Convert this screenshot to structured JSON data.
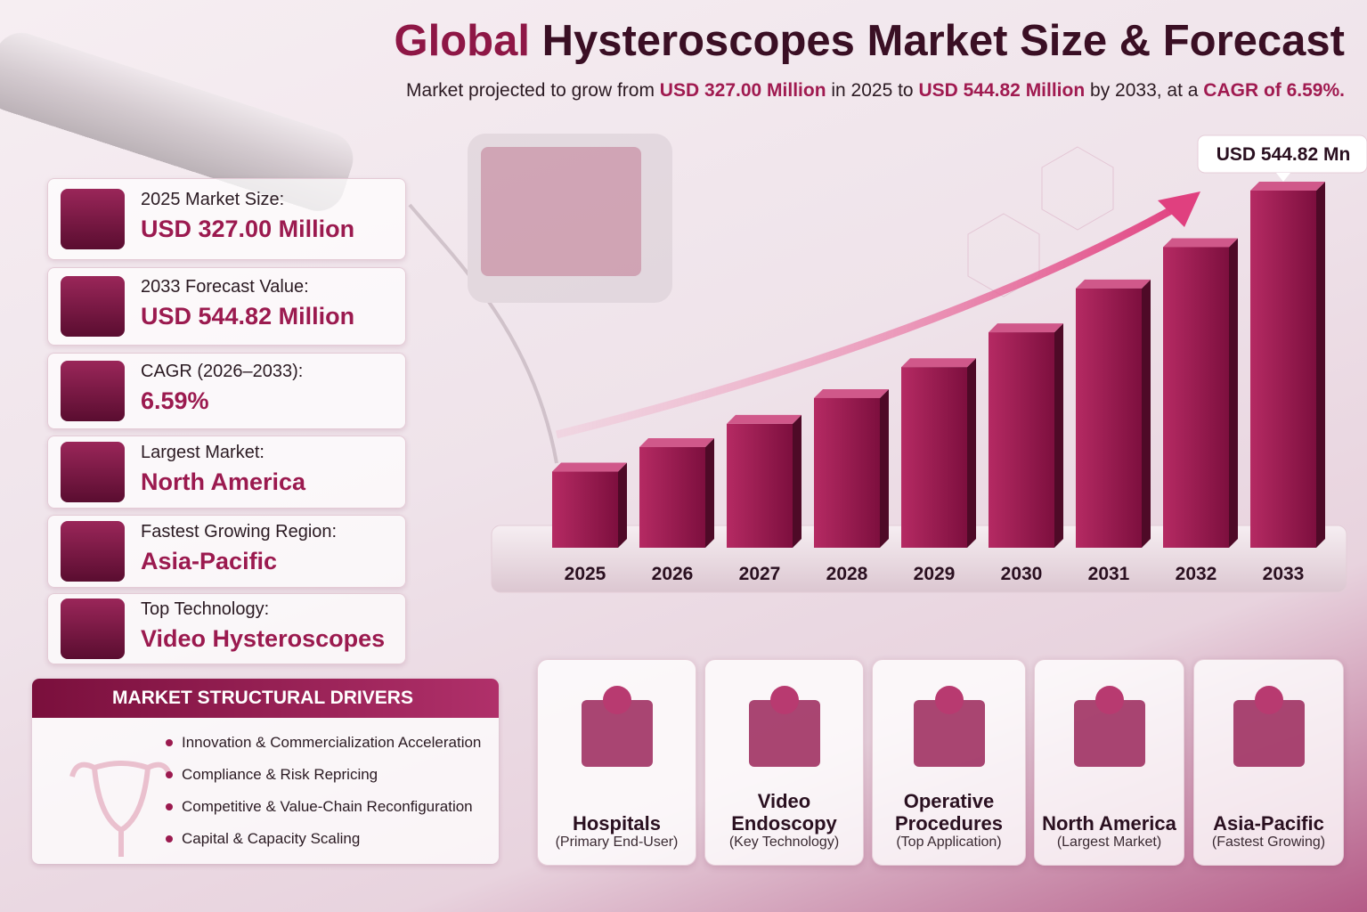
{
  "title_parts": [
    {
      "text": "Global",
      "highlight": true
    },
    {
      "text": " Hysteroscopes Market Size & Forecast",
      "highlight": false
    }
  ],
  "subtitle_parts": [
    {
      "text": "Market projected to grow from ",
      "highlight": false
    },
    {
      "text": "USD 327.00 Million",
      "highlight": true
    },
    {
      "text": " in 2025 to ",
      "highlight": false
    },
    {
      "text": "USD 544.82 Million",
      "highlight": true
    },
    {
      "text": " by 2033, at a ",
      "highlight": false
    },
    {
      "text": "CAGR of 6.59%.",
      "highlight": true
    }
  ],
  "stats": [
    {
      "label": "2025 Market Size:",
      "value": "USD 327.00 Million"
    },
    {
      "label": "2033 Forecast Value:",
      "value": "USD 544.82 Million"
    },
    {
      "label": "CAGR (2026–2033):",
      "value": "6.59%"
    },
    {
      "label": "Largest Market:",
      "value": "North America"
    },
    {
      "label": "Fastest Growing Region:",
      "value": "Asia-Pacific"
    },
    {
      "label": "Top Technology:",
      "value": "Video Hysteroscopes"
    }
  ],
  "drivers": {
    "heading": "MARKET STRUCTURAL DRIVERS",
    "items": [
      "Innovation & Commercialization Acceleration",
      "Compliance & Risk Repricing",
      "Competitive & Value-Chain Reconfiguration",
      "Capital & Capacity Scaling"
    ]
  },
  "segments": [
    {
      "name": "Hospitals",
      "note": "(Primary End-User)"
    },
    {
      "name": "Video Endoscopy",
      "note": "(Key Technology)"
    },
    {
      "name": "Operative Procedures",
      "note": "(Top Application)"
    },
    {
      "name": "North America",
      "note": "(Largest Market)"
    },
    {
      "name": "Asia-Pacific",
      "note": "(Fastest Growing)"
    }
  ],
  "chart_data": {
    "type": "bar",
    "categories": [
      "2025",
      "2026",
      "2027",
      "2028",
      "2029",
      "2030",
      "2031",
      "2032",
      "2033"
    ],
    "values": [
      327.0,
      346,
      364,
      384,
      408,
      435,
      469,
      501,
      544.82
    ],
    "value_labels": [
      null,
      null,
      null,
      null,
      null,
      null,
      null,
      null,
      "USD 544.82 Mn"
    ],
    "color": "#8e1746",
    "ylim": [
      268,
      560
    ]
  }
}
